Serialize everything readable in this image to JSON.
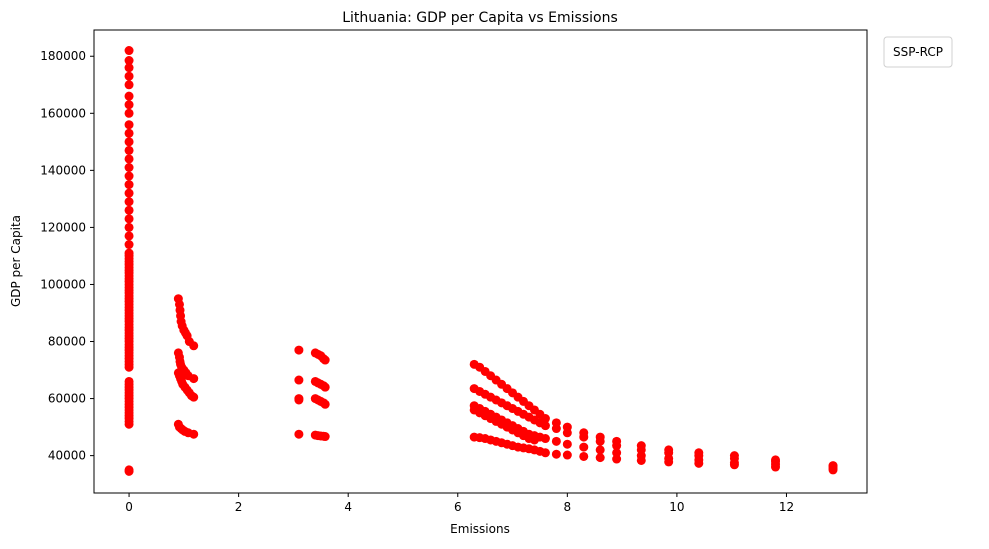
{
  "chart_data": {
    "type": "scatter",
    "title": "Lithuania: GDP per Capita vs Emissions",
    "xlabel": "Emissions",
    "ylabel": "GDP per Capita",
    "xlim": [
      -0.64,
      13.47
    ],
    "ylim": [
      26900,
      189200
    ],
    "xticks": [
      0,
      2,
      4,
      6,
      8,
      10,
      12
    ],
    "yticks": [
      40000,
      60000,
      80000,
      100000,
      120000,
      140000,
      160000,
      180000
    ],
    "ytick_labels": [
      "40000",
      "60000",
      "80000",
      "100000",
      "120000",
      "140000",
      "160000",
      "180000"
    ],
    "xtick_labels": [
      "0",
      "2",
      "4",
      "6",
      "8",
      "10",
      "12"
    ],
    "legend_title": "SSP-RCP",
    "legend_position": "outside-top-right",
    "grid": false,
    "marker_color": "#ff0000",
    "points": [
      [
        0,
        34500
      ],
      [
        0,
        35000
      ],
      [
        0,
        51000
      ],
      [
        0,
        52000
      ],
      [
        0,
        53000
      ],
      [
        0,
        54000
      ],
      [
        0,
        55000
      ],
      [
        0,
        56000
      ],
      [
        0,
        57000
      ],
      [
        0,
        58000
      ],
      [
        0,
        59000
      ],
      [
        0,
        60000
      ],
      [
        0,
        61000
      ],
      [
        0,
        62000
      ],
      [
        0,
        63000
      ],
      [
        0,
        64000
      ],
      [
        0,
        65000
      ],
      [
        0,
        66000
      ],
      [
        0,
        71000
      ],
      [
        0,
        72000
      ],
      [
        0,
        73000
      ],
      [
        0,
        74000
      ],
      [
        0,
        75000
      ],
      [
        0,
        76000
      ],
      [
        0,
        77000
      ],
      [
        0,
        78000
      ],
      [
        0,
        79000
      ],
      [
        0,
        80000
      ],
      [
        0,
        81000
      ],
      [
        0,
        82000
      ],
      [
        0,
        83000
      ],
      [
        0,
        84000
      ],
      [
        0,
        85000
      ],
      [
        0,
        86000
      ],
      [
        0,
        87000
      ],
      [
        0,
        88000
      ],
      [
        0,
        89000
      ],
      [
        0,
        90000
      ],
      [
        0,
        91000
      ],
      [
        0,
        92000
      ],
      [
        0,
        93000
      ],
      [
        0,
        94000
      ],
      [
        0,
        95000
      ],
      [
        0,
        96000
      ],
      [
        0,
        97000
      ],
      [
        0,
        98000
      ],
      [
        0,
        99000
      ],
      [
        0,
        100000
      ],
      [
        0,
        101000
      ],
      [
        0,
        102000
      ],
      [
        0,
        103000
      ],
      [
        0,
        104000
      ],
      [
        0,
        105000
      ],
      [
        0,
        106000
      ],
      [
        0,
        107000
      ],
      [
        0,
        108000
      ],
      [
        0,
        109000
      ],
      [
        0,
        110000
      ],
      [
        0,
        111000
      ],
      [
        0,
        114000
      ],
      [
        0,
        117000
      ],
      [
        0,
        120000
      ],
      [
        0,
        123000
      ],
      [
        0,
        126000
      ],
      [
        0,
        129000
      ],
      [
        0,
        132000
      ],
      [
        0,
        135000
      ],
      [
        0,
        138000
      ],
      [
        0,
        141000
      ],
      [
        0,
        144000
      ],
      [
        0,
        147000
      ],
      [
        0,
        150000
      ],
      [
        0,
        153000
      ],
      [
        0,
        156000
      ],
      [
        0,
        160000
      ],
      [
        0,
        163000
      ],
      [
        0,
        166000
      ],
      [
        0,
        170000
      ],
      [
        0,
        173000
      ],
      [
        0,
        176000
      ],
      [
        0,
        178500
      ],
      [
        0,
        182000
      ],
      [
        0.9,
        95000
      ],
      [
        0.92,
        93000
      ],
      [
        0.93,
        91000
      ],
      [
        0.94,
        89000
      ],
      [
        0.95,
        87000
      ],
      [
        0.97,
        85500
      ],
      [
        1.0,
        84000
      ],
      [
        1.03,
        83000
      ],
      [
        1.06,
        82000
      ],
      [
        1.1,
        80000
      ],
      [
        1.18,
        78500
      ],
      [
        0.9,
        76000
      ],
      [
        0.92,
        74500
      ],
      [
        0.93,
        73000
      ],
      [
        0.94,
        72000
      ],
      [
        0.96,
        71000
      ],
      [
        1.0,
        70000
      ],
      [
        1.04,
        69000
      ],
      [
        1.08,
        68000
      ],
      [
        1.18,
        67000
      ],
      [
        0.9,
        69000
      ],
      [
        0.92,
        68000
      ],
      [
        0.94,
        67000
      ],
      [
        0.96,
        66000
      ],
      [
        0.98,
        65000
      ],
      [
        1.02,
        64000
      ],
      [
        1.06,
        63000
      ],
      [
        1.1,
        62000
      ],
      [
        1.14,
        61000
      ],
      [
        1.18,
        60500
      ],
      [
        0.9,
        51000
      ],
      [
        0.92,
        50000
      ],
      [
        0.95,
        49500
      ],
      [
        0.98,
        49000
      ],
      [
        1.02,
        48500
      ],
      [
        1.08,
        48000
      ],
      [
        1.18,
        47500
      ],
      [
        3.1,
        77000
      ],
      [
        3.1,
        66500
      ],
      [
        3.1,
        60000
      ],
      [
        3.1,
        59500
      ],
      [
        3.1,
        47500
      ],
      [
        3.4,
        76000
      ],
      [
        3.45,
        75500
      ],
      [
        3.5,
        75000
      ],
      [
        3.55,
        74000
      ],
      [
        3.58,
        73500
      ],
      [
        3.4,
        66000
      ],
      [
        3.45,
        65500
      ],
      [
        3.5,
        65000
      ],
      [
        3.55,
        64500
      ],
      [
        3.58,
        64000
      ],
      [
        3.4,
        60000
      ],
      [
        3.45,
        59500
      ],
      [
        3.5,
        59000
      ],
      [
        3.55,
        58500
      ],
      [
        3.58,
        58000
      ],
      [
        3.4,
        47200
      ],
      [
        3.45,
        47000
      ],
      [
        3.5,
        46900
      ],
      [
        3.55,
        46800
      ],
      [
        3.58,
        46700
      ],
      [
        6.3,
        72000
      ],
      [
        6.4,
        71000
      ],
      [
        6.5,
        69500
      ],
      [
        6.6,
        68000
      ],
      [
        6.7,
        66500
      ],
      [
        6.8,
        65000
      ],
      [
        6.9,
        63500
      ],
      [
        7.0,
        62000
      ],
      [
        7.1,
        60500
      ],
      [
        7.2,
        59000
      ],
      [
        7.3,
        57500
      ],
      [
        7.4,
        56000
      ],
      [
        7.5,
        54500
      ],
      [
        7.6,
        53000
      ],
      [
        7.8,
        51500
      ],
      [
        8.0,
        50000
      ],
      [
        8.3,
        48000
      ],
      [
        8.6,
        46500
      ],
      [
        8.9,
        45000
      ],
      [
        9.35,
        43500
      ],
      [
        9.85,
        42000
      ],
      [
        10.4,
        41000
      ],
      [
        11.05,
        40000
      ],
      [
        11.8,
        38500
      ],
      [
        12.85,
        36500
      ],
      [
        6.3,
        63500
      ],
      [
        6.4,
        62500
      ],
      [
        6.5,
        61500
      ],
      [
        6.6,
        60500
      ],
      [
        6.7,
        59500
      ],
      [
        6.8,
        58500
      ],
      [
        6.9,
        57500
      ],
      [
        7.0,
        56500
      ],
      [
        7.1,
        55500
      ],
      [
        7.2,
        54500
      ],
      [
        7.3,
        53500
      ],
      [
        7.4,
        52500
      ],
      [
        7.5,
        51500
      ],
      [
        7.6,
        50500
      ],
      [
        7.8,
        49500
      ],
      [
        8.0,
        48000
      ],
      [
        8.3,
        46500
      ],
      [
        8.6,
        45000
      ],
      [
        8.9,
        43500
      ],
      [
        9.35,
        42000
      ],
      [
        9.85,
        41000
      ],
      [
        10.4,
        40000
      ],
      [
        11.05,
        39000
      ],
      [
        11.8,
        38000
      ],
      [
        12.85,
        36000
      ],
      [
        6.3,
        57500
      ],
      [
        6.4,
        56500
      ],
      [
        6.5,
        55500
      ],
      [
        6.6,
        54500
      ],
      [
        6.7,
        53500
      ],
      [
        6.8,
        52500
      ],
      [
        6.9,
        51500
      ],
      [
        7.0,
        50500
      ],
      [
        7.1,
        49500
      ],
      [
        7.2,
        48500
      ],
      [
        7.3,
        47500
      ],
      [
        7.4,
        47000
      ],
      [
        7.5,
        46500
      ],
      [
        7.6,
        46000
      ],
      [
        7.8,
        45000
      ],
      [
        8.0,
        44000
      ],
      [
        8.3,
        43000
      ],
      [
        8.6,
        42000
      ],
      [
        8.9,
        41000
      ],
      [
        9.35,
        40000
      ],
      [
        9.85,
        39000
      ],
      [
        10.4,
        38500
      ],
      [
        11.05,
        37500
      ],
      [
        11.8,
        37000
      ],
      [
        12.85,
        35500
      ],
      [
        6.3,
        56000
      ],
      [
        6.4,
        55000
      ],
      [
        6.5,
        54000
      ],
      [
        6.6,
        53000
      ],
      [
        6.7,
        52000
      ],
      [
        6.8,
        51000
      ],
      [
        6.9,
        50000
      ],
      [
        7.0,
        49000
      ],
      [
        7.1,
        48000
      ],
      [
        7.2,
        47000
      ],
      [
        7.3,
        46000
      ],
      [
        7.4,
        45500
      ],
      [
        6.3,
        46500
      ],
      [
        6.4,
        46300
      ],
      [
        6.5,
        46000
      ],
      [
        6.6,
        45500
      ],
      [
        6.7,
        45000
      ],
      [
        6.8,
        44500
      ],
      [
        6.9,
        44000
      ],
      [
        7.0,
        43500
      ],
      [
        7.1,
        43000
      ],
      [
        7.2,
        42700
      ],
      [
        7.3,
        42400
      ],
      [
        7.4,
        42000
      ],
      [
        7.5,
        41500
      ],
      [
        7.6,
        41000
      ],
      [
        7.8,
        40500
      ],
      [
        8.0,
        40200
      ],
      [
        8.3,
        39700
      ],
      [
        8.6,
        39300
      ],
      [
        8.9,
        38800
      ],
      [
        9.35,
        38300
      ],
      [
        9.85,
        37800
      ],
      [
        10.4,
        37300
      ],
      [
        11.05,
        36800
      ],
      [
        11.8,
        36000
      ],
      [
        12.85,
        35000
      ]
    ]
  }
}
